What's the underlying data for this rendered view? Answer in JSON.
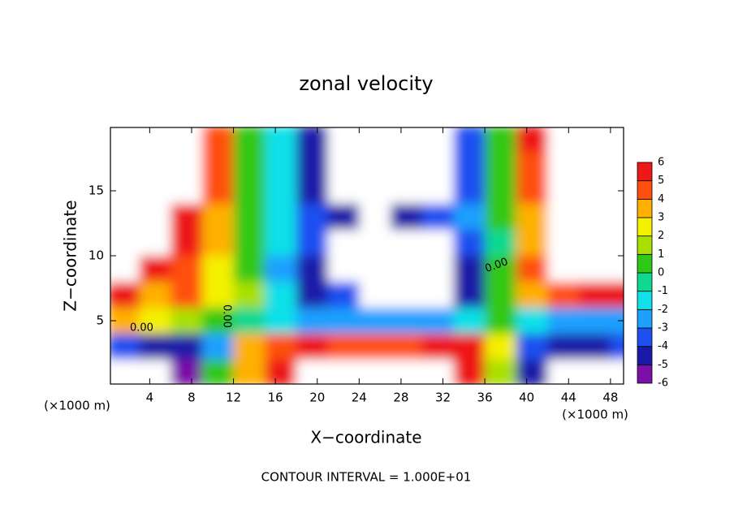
{
  "chart_data": {
    "type": "heatmap",
    "title": "zonal velocity",
    "x_label": "X−coordinate",
    "y_label": "Z−coordinate",
    "unit_label": "(×1000 m)",
    "footer": "CONTOUR INTERVAL = 1.000E+01",
    "contour_label": "0.00",
    "x": [
      1.5,
      4.5,
      7.5,
      10.5,
      13.5,
      16.5,
      19.5,
      22.5,
      25.5,
      28.5,
      31.5,
      34.5,
      37.5,
      40.5,
      43.5,
      46.5,
      49.5
    ],
    "y": [
      19,
      17,
      15,
      13,
      11,
      9,
      7,
      5,
      3,
      1
    ],
    "z": [
      [
        12,
        10,
        8,
        4,
        0,
        -2,
        -5,
        -12,
        -14,
        -12,
        -10,
        -4,
        0,
        5,
        9,
        10,
        10
      ],
      [
        12,
        10,
        7,
        4,
        0,
        -2,
        -5,
        -12,
        -14,
        -12,
        -10,
        -4,
        0,
        4,
        8,
        10,
        10
      ],
      [
        11,
        9,
        7,
        4,
        0,
        -2,
        -5,
        -8,
        -12,
        -12,
        -9,
        -4,
        0,
        4,
        7,
        10,
        10
      ],
      [
        10,
        8,
        6,
        3,
        0,
        -2,
        -4,
        -5,
        -9,
        -5,
        -4,
        -3,
        0,
        3,
        7,
        9,
        9
      ],
      [
        9,
        7,
        5,
        3,
        0,
        -2,
        -4,
        -9,
        -11,
        -12,
        -11,
        -4,
        -1,
        3,
        8,
        9,
        9
      ],
      [
        8,
        6,
        4,
        2,
        0,
        -3,
        -5,
        -8,
        -10,
        -11,
        -9,
        -5,
        0,
        4,
        8,
        9,
        9
      ],
      [
        5,
        3,
        4,
        2,
        1,
        -2,
        -5,
        -4,
        -7,
        -8,
        -7,
        -5,
        0,
        3,
        4,
        5,
        5
      ],
      [
        3,
        2,
        1,
        0,
        -1,
        -2,
        -3,
        -3,
        -3,
        -3,
        -3,
        -2,
        0,
        -2,
        -3,
        -3,
        -3
      ],
      [
        -4,
        -5,
        -5,
        -3,
        3,
        4,
        5,
        4,
        4,
        4,
        5,
        5,
        2,
        -4,
        -5,
        -5,
        -4
      ],
      [
        -8,
        -9,
        -6,
        0,
        3,
        5,
        8,
        8,
        9,
        8,
        8,
        5,
        1,
        -5,
        -8,
        -8,
        -8
      ]
    ],
    "xlim": [
      0.25,
      49.25
    ],
    "ylim": [
      0.125,
      19.875
    ],
    "xticks": [
      4,
      8,
      12,
      16,
      20,
      24,
      28,
      32,
      36,
      40,
      44,
      48
    ],
    "yticks": [
      5,
      10,
      15
    ],
    "levels": [
      -6,
      -5,
      -4,
      -3,
      -2,
      -1,
      0,
      1,
      2,
      3,
      4,
      5,
      6
    ],
    "colors": [
      "#7a10a8",
      "#1a1aa8",
      "#1e50f0",
      "#1ea0ff",
      "#10e0e8",
      "#10d890",
      "#30c818",
      "#a8e000",
      "#f4f000",
      "#ffb000",
      "#ff5010",
      "#ee1818"
    ]
  }
}
